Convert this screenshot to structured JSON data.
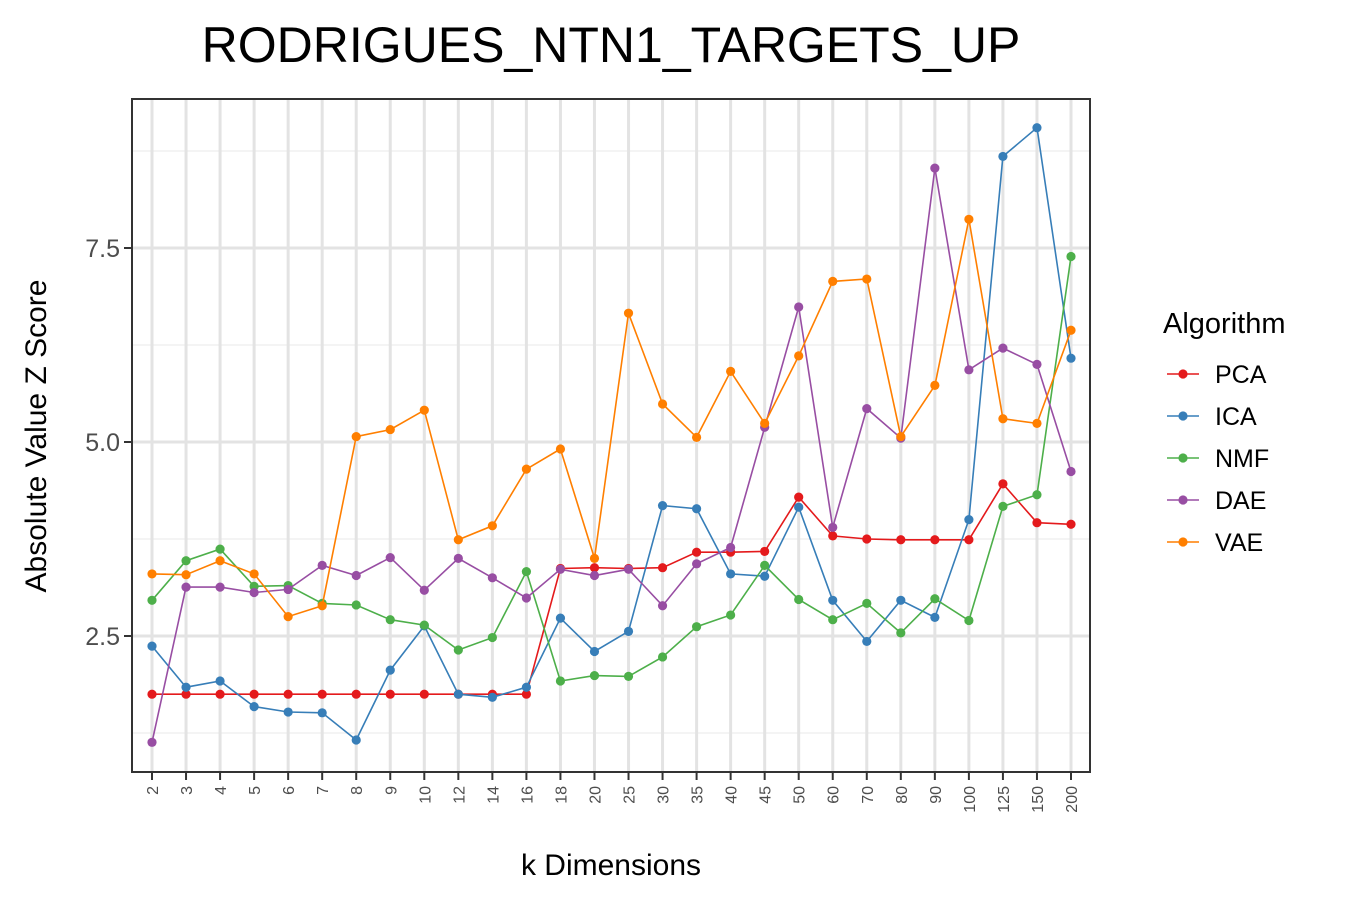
{
  "chart_data": {
    "type": "line",
    "title": "RODRIGUES_NTN1_TARGETS_UP",
    "xlabel": "k Dimensions",
    "ylabel": "Absolute Value Z Score",
    "categories": [
      "2",
      "3",
      "4",
      "5",
      "6",
      "7",
      "8",
      "9",
      "10",
      "12",
      "14",
      "16",
      "18",
      "20",
      "25",
      "30",
      "35",
      "40",
      "45",
      "50",
      "60",
      "70",
      "80",
      "90",
      "100",
      "125",
      "150",
      "200"
    ],
    "yticks": [
      "2.5",
      "5.0",
      "7.5"
    ],
    "ylim": [
      0.95,
      9.4
    ],
    "grid": true,
    "legend": {
      "title": "Algorithm",
      "position": "right"
    },
    "series": [
      {
        "name": "PCA",
        "color": "#E41A1C",
        "values": [
          1.75,
          1.75,
          1.75,
          1.75,
          1.75,
          1.75,
          1.75,
          1.75,
          1.75,
          1.75,
          1.75,
          1.75,
          3.37,
          3.38,
          3.37,
          3.38,
          3.58,
          3.58,
          3.59,
          4.29,
          3.79,
          3.75,
          3.74,
          3.74,
          3.74,
          4.46,
          3.96,
          3.94
        ]
      },
      {
        "name": "ICA",
        "color": "#377EB8",
        "values": [
          2.37,
          1.84,
          1.92,
          1.59,
          1.52,
          1.51,
          1.16,
          2.06,
          2.63,
          1.75,
          1.71,
          1.84,
          2.73,
          2.3,
          2.56,
          4.18,
          4.14,
          3.3,
          3.27,
          4.16,
          2.96,
          2.43,
          2.96,
          2.74,
          4.0,
          8.68,
          9.05,
          6.08
        ]
      },
      {
        "name": "NMF",
        "color": "#4DAF4A",
        "values": [
          2.96,
          3.47,
          3.62,
          3.14,
          3.15,
          2.92,
          2.9,
          2.71,
          2.64,
          2.32,
          2.48,
          3.33,
          1.92,
          1.99,
          1.98,
          2.23,
          2.62,
          2.77,
          3.41,
          2.97,
          2.71,
          2.92,
          2.54,
          2.98,
          2.7,
          4.17,
          4.32,
          7.39
        ]
      },
      {
        "name": "DAE",
        "color": "#984EA3",
        "values": [
          1.13,
          3.13,
          3.13,
          3.06,
          3.1,
          3.41,
          3.28,
          3.51,
          3.09,
          3.5,
          3.25,
          2.99,
          3.36,
          3.28,
          3.36,
          2.89,
          3.43,
          3.64,
          5.19,
          6.74,
          3.9,
          5.43,
          5.05,
          8.53,
          5.93,
          6.21,
          6.0,
          4.62
        ]
      },
      {
        "name": "VAE",
        "color": "#FF7F00",
        "values": [
          3.3,
          3.29,
          3.47,
          3.3,
          2.75,
          2.89,
          5.07,
          5.16,
          5.41,
          3.74,
          3.92,
          4.65,
          4.91,
          3.5,
          6.66,
          5.49,
          5.06,
          5.91,
          5.24,
          6.11,
          7.07,
          7.1,
          5.07,
          5.73,
          7.87,
          5.3,
          5.24,
          6.44
        ]
      }
    ]
  }
}
